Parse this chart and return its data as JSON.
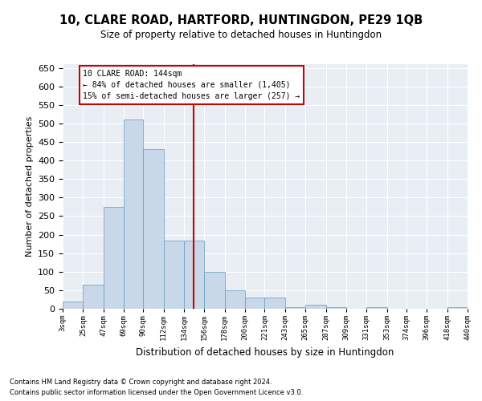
{
  "title": "10, CLARE ROAD, HARTFORD, HUNTINGDON, PE29 1QB",
  "subtitle": "Size of property relative to detached houses in Huntingdon",
  "xlabel": "Distribution of detached houses by size in Huntingdon",
  "ylabel": "Number of detached properties",
  "footnote1": "Contains HM Land Registry data © Crown copyright and database right 2024.",
  "footnote2": "Contains public sector information licensed under the Open Government Licence v3.0.",
  "annotation_line1": "10 CLARE ROAD: 144sqm",
  "annotation_line2": "← 84% of detached houses are smaller (1,405)",
  "annotation_line3": "15% of semi-detached houses are larger (257) →",
  "property_size": 144,
  "bar_color": "#c8d8e8",
  "bar_edge_color": "#6699bb",
  "vline_color": "#cc0000",
  "bg_color": "#e8eef4",
  "annotation_box_color": "#cc0000",
  "bins": [
    3,
    25,
    47,
    69,
    90,
    112,
    134,
    156,
    178,
    200,
    221,
    243,
    265,
    287,
    309,
    331,
    353,
    374,
    396,
    418,
    440
  ],
  "counts": [
    20,
    65,
    275,
    510,
    430,
    185,
    185,
    100,
    50,
    30,
    30,
    5,
    10,
    5,
    0,
    5,
    0,
    0,
    0,
    5
  ],
  "ylim": [
    0,
    660
  ],
  "yticks": [
    0,
    50,
    100,
    150,
    200,
    250,
    300,
    350,
    400,
    450,
    500,
    550,
    600,
    650
  ]
}
